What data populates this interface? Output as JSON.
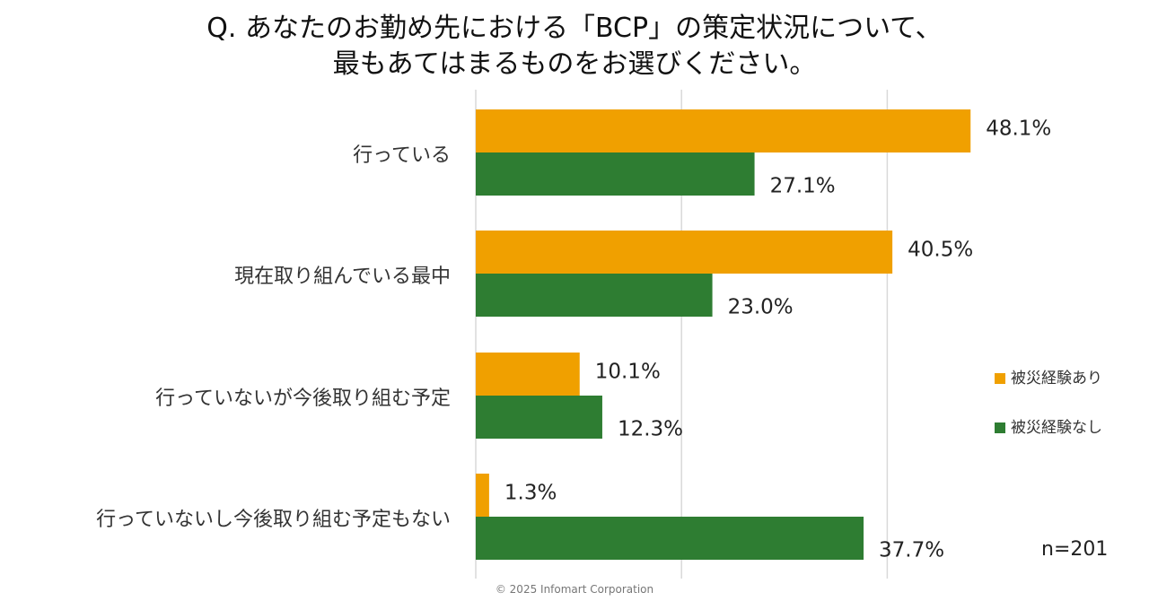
{
  "header": {
    "title_line1": "Q. あなたのお勤め先における「BCP」の策定状況について、",
    "title_line2": "最もあてはまるものをお選びください。"
  },
  "chart_data": {
    "type": "bar",
    "orientation": "horizontal",
    "title": "Q. あなたのお勤め先における「BCP」の策定状況について、最もあてはまるものをお選びください。",
    "categories": [
      "行っている",
      "現在取り組んでいる最中",
      "行っていないが今後取り組む予定",
      "行っていないし今後取り組む予定もない"
    ],
    "series": [
      {
        "name": "被災経験あり",
        "color": "#F0A000",
        "values": [
          48.1,
          40.5,
          10.1,
          1.3
        ],
        "labels": [
          "48.1%",
          "40.5%",
          "10.1%",
          "1.3%"
        ]
      },
      {
        "name": "被災経験なし",
        "color": "#2E7D32",
        "values": [
          27.1,
          23.0,
          12.3,
          37.7
        ],
        "labels": [
          "27.1%",
          "23.0%",
          "12.3%",
          "37.7%"
        ]
      }
    ],
    "xlim": [
      0,
      60
    ],
    "grid": true,
    "legend_position": "right",
    "unit": "%"
  },
  "note": "n=201",
  "copyright": "© 2025 Infomart Corporation"
}
